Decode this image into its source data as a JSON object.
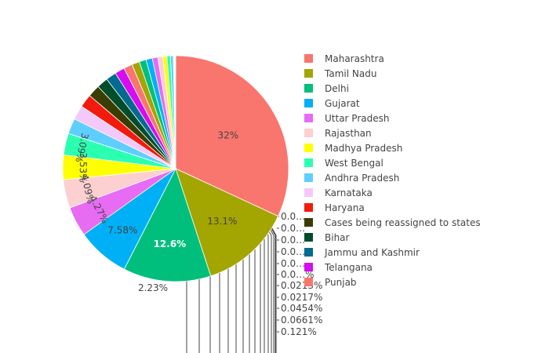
{
  "chart_data": {
    "type": "pie",
    "slices": [
      {
        "label": "Maharashtra",
        "value": 32,
        "display": "32%",
        "color": "#F8766D"
      },
      {
        "label": "Tamil Nadu",
        "value": 13.1,
        "display": "13.1%",
        "color": "#A3A500"
      },
      {
        "label": "Delhi",
        "value": 12.6,
        "display": "12.6%",
        "color": "#00BF7D"
      },
      {
        "label": "Gujarat",
        "value": 7.58,
        "display": "7.58%",
        "color": "#00B0F6"
      },
      {
        "label": "Uttar Pradesh",
        "value": 4.27,
        "display": "4.27%",
        "color": "#E76BF3"
      },
      {
        "label": "Rajasthan",
        "value": 4.09,
        "display": "4.09%",
        "color": "#FCCFD0"
      },
      {
        "label": "Madhya Pradesh",
        "value": 3.53,
        "display": "3.53%",
        "color": "#FFFF00"
      },
      {
        "label": "West Bengal",
        "value": 3.09,
        "display": "3.09%",
        "color": "#2BFFB0"
      },
      {
        "label": "Andhra Pradesh",
        "value": 2.23,
        "display": "2.23%",
        "color": "#5ECEFF"
      },
      {
        "label": "Karnataka",
        "value": 2.05,
        "display": "",
        "color": "#F5C8FA"
      },
      {
        "label": "Haryana",
        "value": 1.9,
        "display": "",
        "color": "#F21A0D"
      },
      {
        "label": "Cases being reassigned to states",
        "value": 1.75,
        "display": "",
        "color": "#3A3D00"
      },
      {
        "label": "Bihar",
        "value": 1.6,
        "display": "",
        "color": "#004D2B"
      },
      {
        "label": "Jammu and Kashmir",
        "value": 1.5,
        "display": "",
        "color": "#036B8F"
      },
      {
        "label": "Telangana",
        "value": 1.4,
        "display": "",
        "color": "#D60CF2"
      },
      {
        "label": "Punjab",
        "value": 1.25,
        "display": "",
        "color": "#F8766D"
      },
      {
        "label": "",
        "value": 1.1,
        "display": "",
        "color": "#A3A500"
      },
      {
        "label": "",
        "value": 1.0,
        "display": "",
        "color": "#00BF7D"
      },
      {
        "label": "",
        "value": 0.9,
        "display": "",
        "color": "#00B0F6"
      },
      {
        "label": "",
        "value": 0.8,
        "display": "",
        "color": "#E76BF3"
      },
      {
        "label": "",
        "value": 0.7,
        "display": "",
        "color": "#FCCFD0"
      },
      {
        "label": "",
        "value": 0.6,
        "display": "",
        "color": "#FFFF00"
      },
      {
        "label": "",
        "value": 0.5,
        "display": "",
        "color": "#2BFFB0"
      },
      {
        "label": "",
        "value": 0.4,
        "display": "",
        "color": "#5ECEFF"
      },
      {
        "label": "",
        "value": 0.121,
        "display": "0.121%",
        "color": "#F5C8FA"
      },
      {
        "label": "",
        "value": 0.0661,
        "display": "0.0661%",
        "color": "#F21A0D"
      },
      {
        "label": "",
        "value": 0.0454,
        "display": "0.0454%",
        "color": "#3A3D00"
      },
      {
        "label": "",
        "value": 0.0217,
        "display": "0.0217%",
        "color": "#004D2B"
      },
      {
        "label": "",
        "value": 0.0213,
        "display": "0.0213%",
        "color": "#036B8F"
      },
      {
        "label": "",
        "value": 0.02,
        "display": "0.0…%",
        "color": "#D60CF2"
      },
      {
        "label": "",
        "value": 0.015,
        "display": "0.0…",
        "color": "#F8766D"
      },
      {
        "label": "",
        "value": 0.01,
        "display": "0.0…",
        "color": "#A3A500"
      },
      {
        "label": "",
        "value": 0.008,
        "display": "0.0…",
        "color": "#00BF7D"
      },
      {
        "label": "",
        "value": 0.006,
        "display": "0.0…",
        "color": "#00B0F6"
      },
      {
        "label": "",
        "value": 0.004,
        "display": "0.0…",
        "color": "#E76BF3"
      }
    ],
    "legend_position": "right",
    "text_color_light": "#ffffff",
    "text_color_dark": "#444444"
  }
}
